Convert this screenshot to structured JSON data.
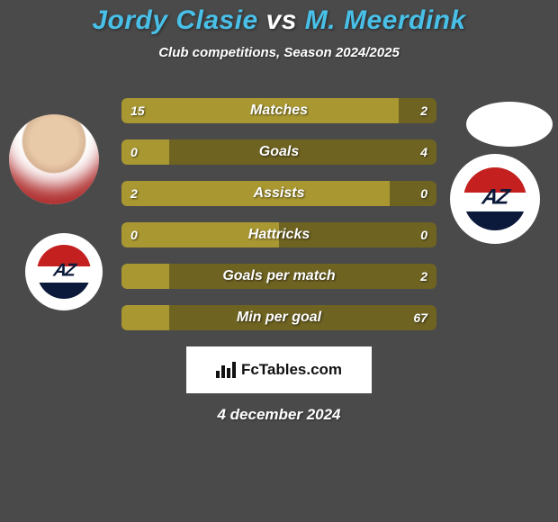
{
  "colors": {
    "background": "#4a4a4a",
    "title_player1": "#49c0e8",
    "title_vs": "#ffffff",
    "title_player2": "#49c0e8",
    "bar_left": "#a99832",
    "bar_right": "#6f6322",
    "bar_text": "#ffffff",
    "logo_top": "#c42020",
    "logo_mid": "#ffffff",
    "logo_bot": "#0b1a3a",
    "logo_text": "#0b1a3a"
  },
  "header": {
    "player1": "Jordy Clasie",
    "vs": "vs",
    "player2": "M. Meerdink",
    "subtitle": "Club competitions, Season 2024/2025"
  },
  "bars": [
    {
      "label": "Matches",
      "left": "15",
      "right": "2",
      "left_pct": 88,
      "right_pct": 12
    },
    {
      "label": "Goals",
      "left": "0",
      "right": "4",
      "left_pct": 15,
      "right_pct": 85
    },
    {
      "label": "Assists",
      "left": "2",
      "right": "0",
      "left_pct": 85,
      "right_pct": 15
    },
    {
      "label": "Hattricks",
      "left": "0",
      "right": "0",
      "left_pct": 50,
      "right_pct": 50
    },
    {
      "label": "Goals per match",
      "left": "",
      "right": "2",
      "left_pct": 15,
      "right_pct": 85
    },
    {
      "label": "Min per goal",
      "left": "",
      "right": "67",
      "left_pct": 15,
      "right_pct": 85
    }
  ],
  "footer": {
    "site": "FcTables.com",
    "date": "4 december 2024"
  }
}
